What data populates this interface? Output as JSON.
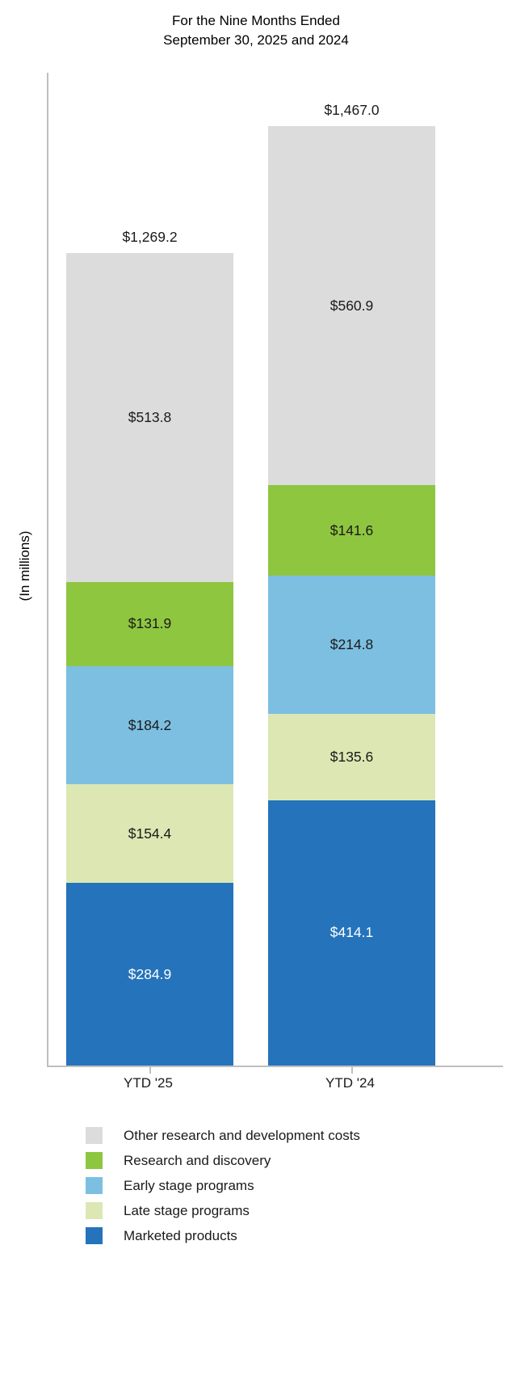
{
  "chart_data": {
    "type": "bar",
    "stacked": true,
    "title": "For the Nine Months Ended September 30, 2025 and 2024",
    "title_line1": "For the Nine Months Ended",
    "title_line2": "September 30, 2025 and 2024",
    "ylabel": "(In millions)",
    "categories": [
      "YTD '25",
      "YTD '24"
    ],
    "totals": [
      1269.2,
      1467.0
    ],
    "total_labels": [
      "$1,269.2",
      "$1,467.0"
    ],
    "series": [
      {
        "name": "Other research and development costs",
        "color": "#dcdcdc",
        "text_color": "#1a1a1a",
        "values": [
          513.8,
          560.9
        ],
        "labels": [
          "$513.8",
          "$560.9"
        ]
      },
      {
        "name": "Research and discovery",
        "color": "#8ec63f",
        "text_color": "#1a1a1a",
        "values": [
          131.9,
          141.6
        ],
        "labels": [
          "$131.9",
          "$141.6"
        ]
      },
      {
        "name": "Early stage programs",
        "color": "#7cbfe1",
        "text_color": "#1a1a1a",
        "values": [
          184.2,
          214.8
        ],
        "labels": [
          "$184.2",
          "$214.8"
        ]
      },
      {
        "name": "Late stage programs",
        "color": "#dce7b3",
        "text_color": "#1a1a1a",
        "values": [
          154.4,
          135.6
        ],
        "labels": [
          "$154.4",
          "$135.6"
        ]
      },
      {
        "name": "Marketed products",
        "color": "#2573ba",
        "text_color": "#ffffff",
        "values": [
          284.9,
          414.1
        ],
        "labels": [
          "$284.9",
          "$414.1"
        ]
      }
    ],
    "legend_position": "bottom",
    "grid": false,
    "ylim": [
      0,
      1467.0
    ]
  }
}
